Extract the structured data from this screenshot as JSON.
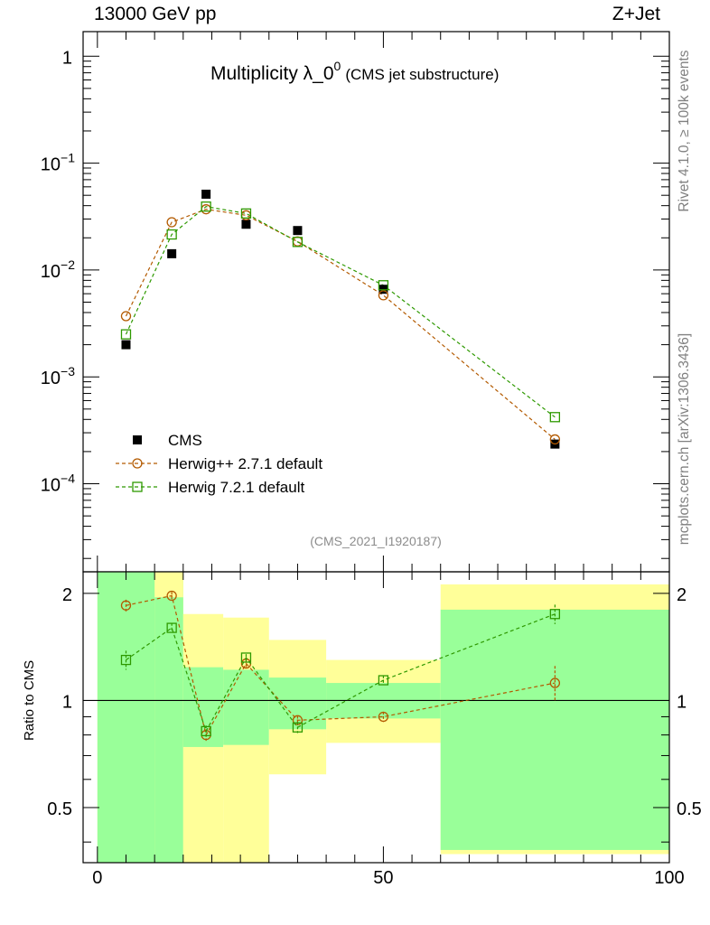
{
  "header": {
    "left": "13000 GeV pp",
    "right": "Z+Jet"
  },
  "chart_data": {
    "type": "scatter",
    "title_main": "Multiplicity λ_0",
    "title_sup": "0",
    "title_sub": "(CMS jet substructure)",
    "analysis_id": "(CMS_2021_I1920187)",
    "side_labels": {
      "rivet": "Rivet 4.1.0, ≥ 100k events",
      "mcplots": "mcplots.cern.ch [arXiv:1306.3436]"
    },
    "upper": {
      "yscale": "log",
      "ylim": [
        1.5e-05,
        1.7
      ],
      "yticks": [
        {
          "value": 1,
          "label": "1"
        },
        {
          "value": 0.1,
          "label": "10",
          "exp": "−1"
        },
        {
          "value": 0.01,
          "label": "10",
          "exp": "−2"
        },
        {
          "value": 0.001,
          "label": "10",
          "exp": "−3"
        },
        {
          "value": 0.0001,
          "label": "10",
          "exp": "−4"
        }
      ]
    },
    "lower": {
      "ylabel": "Ratio to CMS",
      "ylim": [
        0.35,
        2.3
      ],
      "yticks": [
        {
          "value": 2,
          "label": "2"
        },
        {
          "value": 1,
          "label": "1"
        },
        {
          "value": 0.5,
          "label": "0.5"
        }
      ],
      "bands": [
        {
          "xlo": 0,
          "xhi": 15,
          "g_lo": 0.35,
          "g_hi": 2.3,
          "y_lo": 0.35,
          "y_hi": 2.3
        },
        {
          "xlo": 10,
          "xhi": 15,
          "g_lo": 0.35,
          "g_hi": 1.95,
          "y_lo": 0.35,
          "y_hi": 2.3
        },
        {
          "xlo": 15,
          "xhi": 22,
          "g_lo": 0.74,
          "g_hi": 1.24,
          "y_lo": 0.35,
          "y_hi": 1.75
        },
        {
          "xlo": 22,
          "xhi": 30,
          "g_lo": 0.75,
          "g_hi": 1.22,
          "y_lo": 0.35,
          "y_hi": 1.71
        },
        {
          "xlo": 30,
          "xhi": 40,
          "g_lo": 0.83,
          "g_hi": 1.16,
          "y_lo": 0.62,
          "y_hi": 1.48
        },
        {
          "xlo": 40,
          "xhi": 60,
          "g_lo": 0.89,
          "g_hi": 1.12,
          "y_lo": 0.76,
          "y_hi": 1.3
        },
        {
          "xlo": 60,
          "xhi": 100,
          "g_lo": 0.38,
          "g_hi": 1.8,
          "y_lo": 0.37,
          "y_hi": 2.12
        }
      ]
    },
    "x": {
      "xlim": [
        -2.5,
        100
      ],
      "ticks": [
        {
          "value": 0,
          "label": "0"
        },
        {
          "value": 50,
          "label": "50"
        },
        {
          "value": 100,
          "label": "100"
        }
      ]
    },
    "colors": {
      "cms": "#000000",
      "herwigpp": "#b35a00",
      "herwig7": "#2e9900",
      "band_green": "#99ff99",
      "band_yellow": "#ffff99"
    },
    "legend": {
      "placement": "lower-left",
      "entries": [
        {
          "name": "CMS",
          "key": "cms"
        },
        {
          "name": "Herwig++ 2.7.1 default",
          "key": "herwigpp"
        },
        {
          "name": "Herwig 7.2.1 default",
          "key": "herwig7"
        }
      ]
    },
    "series": [
      {
        "name": "CMS",
        "key": "cms",
        "marker": "filled-square",
        "x": [
          5,
          13,
          19,
          26,
          35,
          50,
          80
        ],
        "y": [
          0.002,
          0.0142,
          0.0512,
          0.0268,
          0.0234,
          0.0066,
          0.000235
        ]
      },
      {
        "name": "Herwig++ 2.7.1 default",
        "key": "herwigpp",
        "marker": "open-circle",
        "x": [
          5,
          13,
          19,
          26,
          35,
          50,
          80
        ],
        "y": [
          0.0037,
          0.028,
          0.037,
          0.0325,
          0.0185,
          0.0058,
          0.00026
        ],
        "ratio": [
          1.85,
          1.97,
          0.8,
          1.27,
          0.88,
          0.9,
          1.12
        ],
        "ratio_err": [
          0.07,
          0.05,
          0.03,
          0.03,
          0.025,
          0.03,
          0.13
        ]
      },
      {
        "name": "Herwig 7.2.1 default",
        "key": "herwig7",
        "marker": "open-square",
        "x": [
          5,
          13,
          19,
          26,
          35,
          50,
          80
        ],
        "y": [
          0.0025,
          0.0215,
          0.0392,
          0.0338,
          0.0183,
          0.0072,
          0.00042
        ],
        "ratio": [
          1.3,
          1.6,
          0.82,
          1.32,
          0.84,
          1.14,
          1.75
        ],
        "ratio_err": [
          0.08,
          0.05,
          0.03,
          0.03,
          0.03,
          0.035,
          0.11
        ]
      }
    ]
  }
}
